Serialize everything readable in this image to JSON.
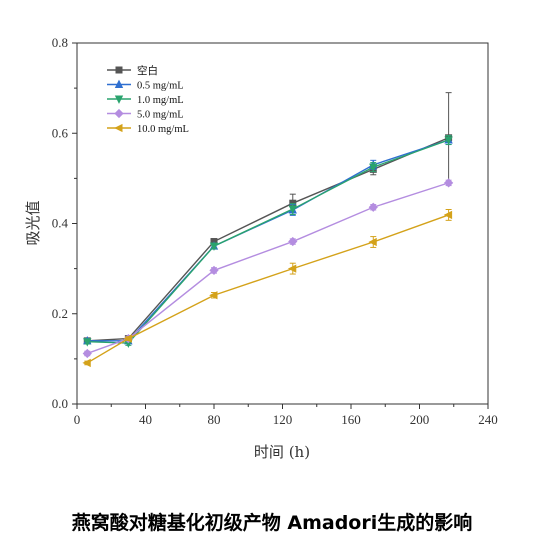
{
  "caption": "燕窝酸对糖基化初级产物 Amadori生成的影响",
  "chart_data": {
    "type": "line",
    "xlabel": "时间 (h)",
    "ylabel": "吸光值",
    "xlim": [
      0,
      240
    ],
    "ylim": [
      0.0,
      0.8
    ],
    "xticks": [
      "0",
      "40",
      "80",
      "120",
      "160",
      "200",
      "240"
    ],
    "yticks": [
      "0.0",
      "0.2",
      "0.4",
      "0.6",
      "0.8"
    ],
    "grid": false,
    "legend_position": "top-left",
    "x": [
      6,
      30,
      80,
      126,
      173,
      217
    ],
    "series": [
      {
        "name": "空白",
        "color": "#555555",
        "marker": "square",
        "values": [
          0.14,
          0.145,
          0.36,
          0.445,
          0.52,
          0.59
        ],
        "errors": [
          0.005,
          0.005,
          0.006,
          0.02,
          0.012,
          0.1
        ]
      },
      {
        "name": "0.5 mg/mL",
        "color": "#2f6fd0",
        "marker": "triangle-up",
        "values": [
          0.14,
          0.14,
          0.35,
          0.43,
          0.53,
          0.585
        ],
        "errors": [
          0.005,
          0.005,
          0.006,
          0.012,
          0.01,
          0.01
        ]
      },
      {
        "name": "1.0 mg/mL",
        "color": "#2aa36e",
        "marker": "triangle-down",
        "values": [
          0.138,
          0.135,
          0.35,
          0.432,
          0.525,
          0.585
        ],
        "errors": [
          0.005,
          0.005,
          0.006,
          0.012,
          0.01,
          0.01
        ]
      },
      {
        "name": "5.0 mg/mL",
        "color": "#b48de0",
        "marker": "diamond",
        "values": [
          0.112,
          0.145,
          0.296,
          0.36,
          0.436,
          0.49
        ],
        "errors": [
          0.005,
          0.005,
          0.006,
          0.006,
          0.006,
          0.006
        ]
      },
      {
        "name": "10.0 mg/mL",
        "color": "#d4a21a",
        "marker": "triangle-left",
        "values": [
          0.091,
          0.145,
          0.241,
          0.3,
          0.359,
          0.419
        ],
        "errors": [
          0.004,
          0.004,
          0.006,
          0.012,
          0.012,
          0.012
        ]
      }
    ]
  }
}
